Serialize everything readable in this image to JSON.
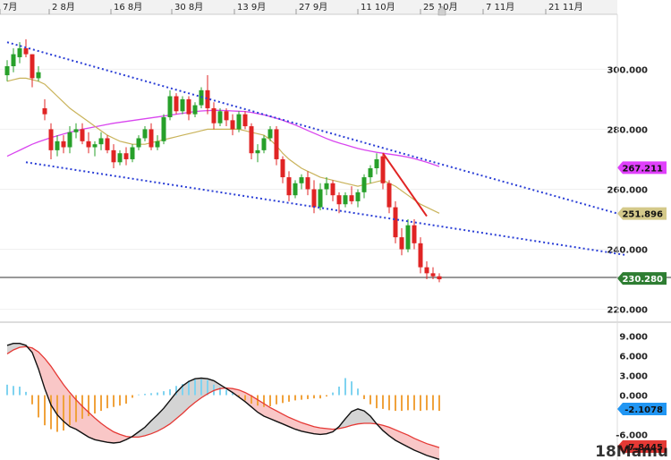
{
  "chart_data": [
    {
      "type": "candlestick",
      "title": "",
      "x_tick_labels": [
        "7月",
        "2 8月",
        "16 8月",
        "30 8月",
        "13 9月",
        "27 9月",
        "11 10月",
        "25 10月",
        "7 11月",
        "21 11月"
      ],
      "y_tick_labels": [
        "300.000",
        "280.000",
        "260.000",
        "240.000",
        "220.000"
      ],
      "ylim": [
        216,
        318
      ],
      "grid": true,
      "series": [
        {
          "name": "price",
          "values": [
            [
              298,
              303,
              296,
              301
            ],
            [
              301,
              307,
              299,
              305
            ],
            [
              304,
              309,
              302,
              307
            ],
            [
              307,
              310,
              304,
              305
            ],
            [
              305,
              305,
              294,
              297
            ],
            [
              297,
              301,
              296,
              299
            ],
            [
              287,
              290,
              283,
              285
            ],
            [
              280,
              282,
              270,
              273
            ],
            [
              273,
              278,
              271,
              276
            ],
            [
              276,
              278,
              272,
              274
            ],
            [
              274,
              281,
              272,
              279
            ],
            [
              279,
              282,
              277,
              280
            ],
            [
              280,
              282,
              275,
              276
            ],
            [
              276,
              279,
              272,
              274
            ],
            [
              274,
              276,
              271,
              275
            ],
            [
              275,
              279,
              273,
              277
            ],
            [
              277,
              278,
              272,
              273
            ],
            [
              273,
              275,
              267,
              269
            ],
            [
              269,
              273,
              268,
              272
            ],
            [
              272,
              274,
              268,
              270
            ],
            [
              270,
              275,
              269,
              274
            ],
            [
              274,
              278,
              273,
              277
            ],
            [
              277,
              281,
              276,
              280
            ],
            [
              280,
              282,
              273,
              274
            ],
            [
              274,
              278,
              273,
              276
            ],
            [
              276,
              285,
              275,
              284
            ],
            [
              284,
              293,
              283,
              291
            ],
            [
              291,
              292,
              285,
              286
            ],
            [
              286,
              291,
              285,
              290
            ],
            [
              290,
              291,
              283,
              285
            ],
            [
              285,
              289,
              284,
              288
            ],
            [
              288,
              294,
              287,
              293
            ],
            [
              293,
              298,
              285,
              287
            ],
            [
              287,
              289,
              280,
              282
            ],
            [
              282,
              287,
              281,
              286
            ],
            [
              286,
              287,
              281,
              283
            ],
            [
              283,
              285,
              278,
              280
            ],
            [
              280,
              286,
              279,
              285
            ],
            [
              285,
              286,
              280,
              281
            ],
            [
              281,
              282,
              270,
              272
            ],
            [
              272,
              275,
              269,
              273
            ],
            [
              273,
              278,
              272,
              277
            ],
            [
              277,
              281,
              276,
              280
            ],
            [
              280,
              281,
              268,
              270
            ],
            [
              270,
              271,
              262,
              264
            ],
            [
              264,
              266,
              256,
              258
            ],
            [
              258,
              263,
              257,
              262
            ],
            [
              262,
              265,
              260,
              264
            ],
            [
              264,
              266,
              258,
              260
            ],
            [
              260,
              263,
              252,
              254
            ],
            [
              254,
              262,
              253,
              260
            ],
            [
              260,
              264,
              258,
              262
            ],
            [
              262,
              263,
              256,
              258
            ],
            [
              258,
              259,
              252,
              255
            ],
            [
              255,
              259,
              254,
              258
            ],
            [
              258,
              261,
              255,
              256
            ],
            [
              256,
              260,
              254,
              259
            ],
            [
              259,
              265,
              257,
              264
            ],
            [
              264,
              268,
              262,
              267
            ],
            [
              267,
              272,
              265,
              270
            ],
            [
              271,
              272,
              260,
              262
            ],
            [
              262,
              263,
              252,
              254
            ],
            [
              254,
              256,
              242,
              244
            ],
            [
              244,
              247,
              238,
              240
            ],
            [
              240,
              250,
              239,
              248
            ],
            [
              248,
              250,
              240,
              242
            ],
            [
              242,
              244,
              232,
              234
            ],
            [
              234,
              236,
              230,
              232
            ],
            [
              232,
              234,
              230,
              231
            ],
            [
              231,
              232,
              229,
              230
            ]
          ]
        },
        {
          "name": "ma_short",
          "values": [
            296,
            296.5,
            297,
            297,
            296.5,
            296,
            295,
            293,
            291,
            289,
            287,
            285.5,
            284,
            282.5,
            281,
            279.5,
            278,
            277,
            276,
            275.5,
            275,
            275,
            275,
            275.5,
            276,
            276.5,
            277,
            277.5,
            278,
            278.5,
            279,
            279.5,
            280,
            280,
            280,
            280,
            280,
            280,
            279.5,
            279,
            278.5,
            278,
            276.5,
            274.5,
            272,
            270,
            268.5,
            267,
            266,
            265,
            264,
            263.5,
            263,
            262.5,
            262,
            261.5,
            261,
            261.5,
            262,
            262.5,
            263,
            262,
            261,
            259.5,
            258,
            256.5,
            255,
            254,
            253,
            252
          ]
        },
        {
          "name": "ma_long",
          "values": [
            271,
            272,
            273,
            274,
            275,
            275.8,
            276.5,
            277.2,
            277.8,
            278.4,
            279,
            279.5,
            280,
            280.4,
            280.8,
            281.2,
            281.6,
            282,
            282.3,
            282.6,
            282.9,
            283.2,
            283.5,
            283.8,
            284.1,
            284.4,
            284.7,
            285,
            285.3,
            285.6,
            285.9,
            286.1,
            286.2,
            286.3,
            286.3,
            286.2,
            286.1,
            286,
            285.9,
            285.6,
            285.2,
            284.8,
            284.2,
            283.6,
            283,
            282.2,
            281.4,
            280.5,
            279.6,
            278.7,
            277.8,
            276.9,
            276.1,
            275.4,
            274.8,
            274.2,
            273.6,
            273.1,
            272.7,
            272.3,
            272,
            271.7,
            271.4,
            271.1,
            270.7,
            270.2,
            269.6,
            269,
            268.3,
            267.6
          ]
        },
        {
          "name": "trend_upper",
          "values": [
            [
              0,
              309
            ],
            [
              63,
              272
            ],
            [
              99,
              251
            ]
          ]
        },
        {
          "name": "trend_lower",
          "values": [
            [
              3,
              269
            ],
            [
              99,
              238
            ]
          ]
        },
        {
          "name": "trend_red",
          "values": [
            [
              60,
              272
            ],
            [
              67,
              251
            ]
          ]
        }
      ],
      "price_tags": [
        {
          "value": "267.211",
          "y": 267.2,
          "color": "#e040fb",
          "text_color": "#111111"
        },
        {
          "value": "251.896",
          "y": 251.9,
          "color": "#d4c98a",
          "text_color": "#111111"
        },
        {
          "value": "230.280",
          "y": 230.28,
          "color": "#2e7d32",
          "text_color": "#ffffff"
        }
      ]
    },
    {
      "type": "macd",
      "y_tick_labels": [
        "9.000",
        "6.000",
        "3.000",
        "0.000",
        "-6.000"
      ],
      "ylim": [
        -9.9,
        11
      ],
      "grid": false,
      "series": [
        {
          "name": "macd",
          "values": [
            7.6,
            7.9,
            7.9,
            7.6,
            6.5,
            4,
            1,
            -1.5,
            -3,
            -4,
            -4.8,
            -5.2,
            -5.8,
            -6.4,
            -6.8,
            -7,
            -7.2,
            -7.3,
            -7.2,
            -6.8,
            -6.3,
            -5.6,
            -4.9,
            -3.9,
            -3,
            -2,
            -0.8,
            0.4,
            1.4,
            2.1,
            2.5,
            2.6,
            2.5,
            2.2,
            1.6,
            1,
            0.4,
            -0.3,
            -1,
            -1.8,
            -2.6,
            -3.2,
            -3.6,
            -4,
            -4.4,
            -4.8,
            -5.2,
            -5.5,
            -5.7,
            -5.9,
            -6,
            -5.9,
            -5.6,
            -4.8,
            -3.6,
            -2.5,
            -2.1,
            -2.4,
            -3.2,
            -4.4,
            -5.4,
            -6.2,
            -6.9,
            -7.4,
            -7.9,
            -8.4,
            -8.8,
            -9.2,
            -9.5,
            -9.8
          ]
        },
        {
          "name": "signal",
          "values": [
            6.3,
            6.9,
            7.3,
            7.4,
            7.2,
            6.6,
            5.6,
            4.4,
            3,
            1.6,
            0.4,
            -0.7,
            -1.7,
            -2.6,
            -3.5,
            -4.3,
            -5,
            -5.6,
            -6,
            -6.3,
            -6.4,
            -6.4,
            -6.2,
            -5.9,
            -5.5,
            -5,
            -4.4,
            -3.6,
            -2.8,
            -1.9,
            -1.1,
            -0.4,
            0.2,
            0.7,
            1,
            1.1,
            1,
            0.8,
            0.4,
            -0.1,
            -0.7,
            -1.3,
            -1.9,
            -2.4,
            -2.9,
            -3.4,
            -3.8,
            -4.2,
            -4.5,
            -4.8,
            -5,
            -5.1,
            -5.2,
            -5.1,
            -4.9,
            -4.6,
            -4.4,
            -4.3,
            -4.3,
            -4.4,
            -4.6,
            -4.9,
            -5.3,
            -5.7,
            -6.1,
            -6.6,
            -7,
            -7.4,
            -7.7,
            -8
          ]
        },
        {
          "name": "histogram",
          "values": [
            1.6,
            1.4,
            1.3,
            0.5,
            -1.4,
            -3.4,
            -4.6,
            -5.2,
            -5.6,
            -5.4,
            -4.6,
            -4.1,
            -3.6,
            -3.2,
            -2.8,
            -2.4,
            -2.0,
            -1.8,
            -1.6,
            -1.3,
            -0.4,
            0.1,
            0.2,
            0.3,
            0.4,
            0.6,
            0.9,
            1.4,
            1.7,
            2.2,
            2.4,
            2.4,
            2.3,
            1.6,
            1.2,
            0.8,
            0.4,
            -0.2,
            -0.8,
            -1.3,
            -1.6,
            -1.8,
            -1.7,
            -1.4,
            -1.2,
            -1.0,
            -0.8,
            -0.7,
            -0.6,
            -0.5,
            -0.5,
            -0.2,
            0.4,
            1.3,
            2.6,
            2.1,
            1.0,
            -0.6,
            -1.4,
            -2.0,
            -2.1,
            -2.3,
            -2.4,
            -2.4,
            -2.3,
            -2.3,
            -2.4,
            -2.3,
            -2.3,
            -2.4
          ]
        }
      ],
      "value_tags": [
        {
          "value": "-2.1078",
          "y": -2.1078,
          "color": "#2196f3",
          "text_color": "#111111"
        },
        {
          "value": "-7.8445",
          "y": -7.8445,
          "color": "#e53935",
          "text_color": "#111111"
        }
      ]
    }
  ],
  "watermark_text": "18Mamu"
}
